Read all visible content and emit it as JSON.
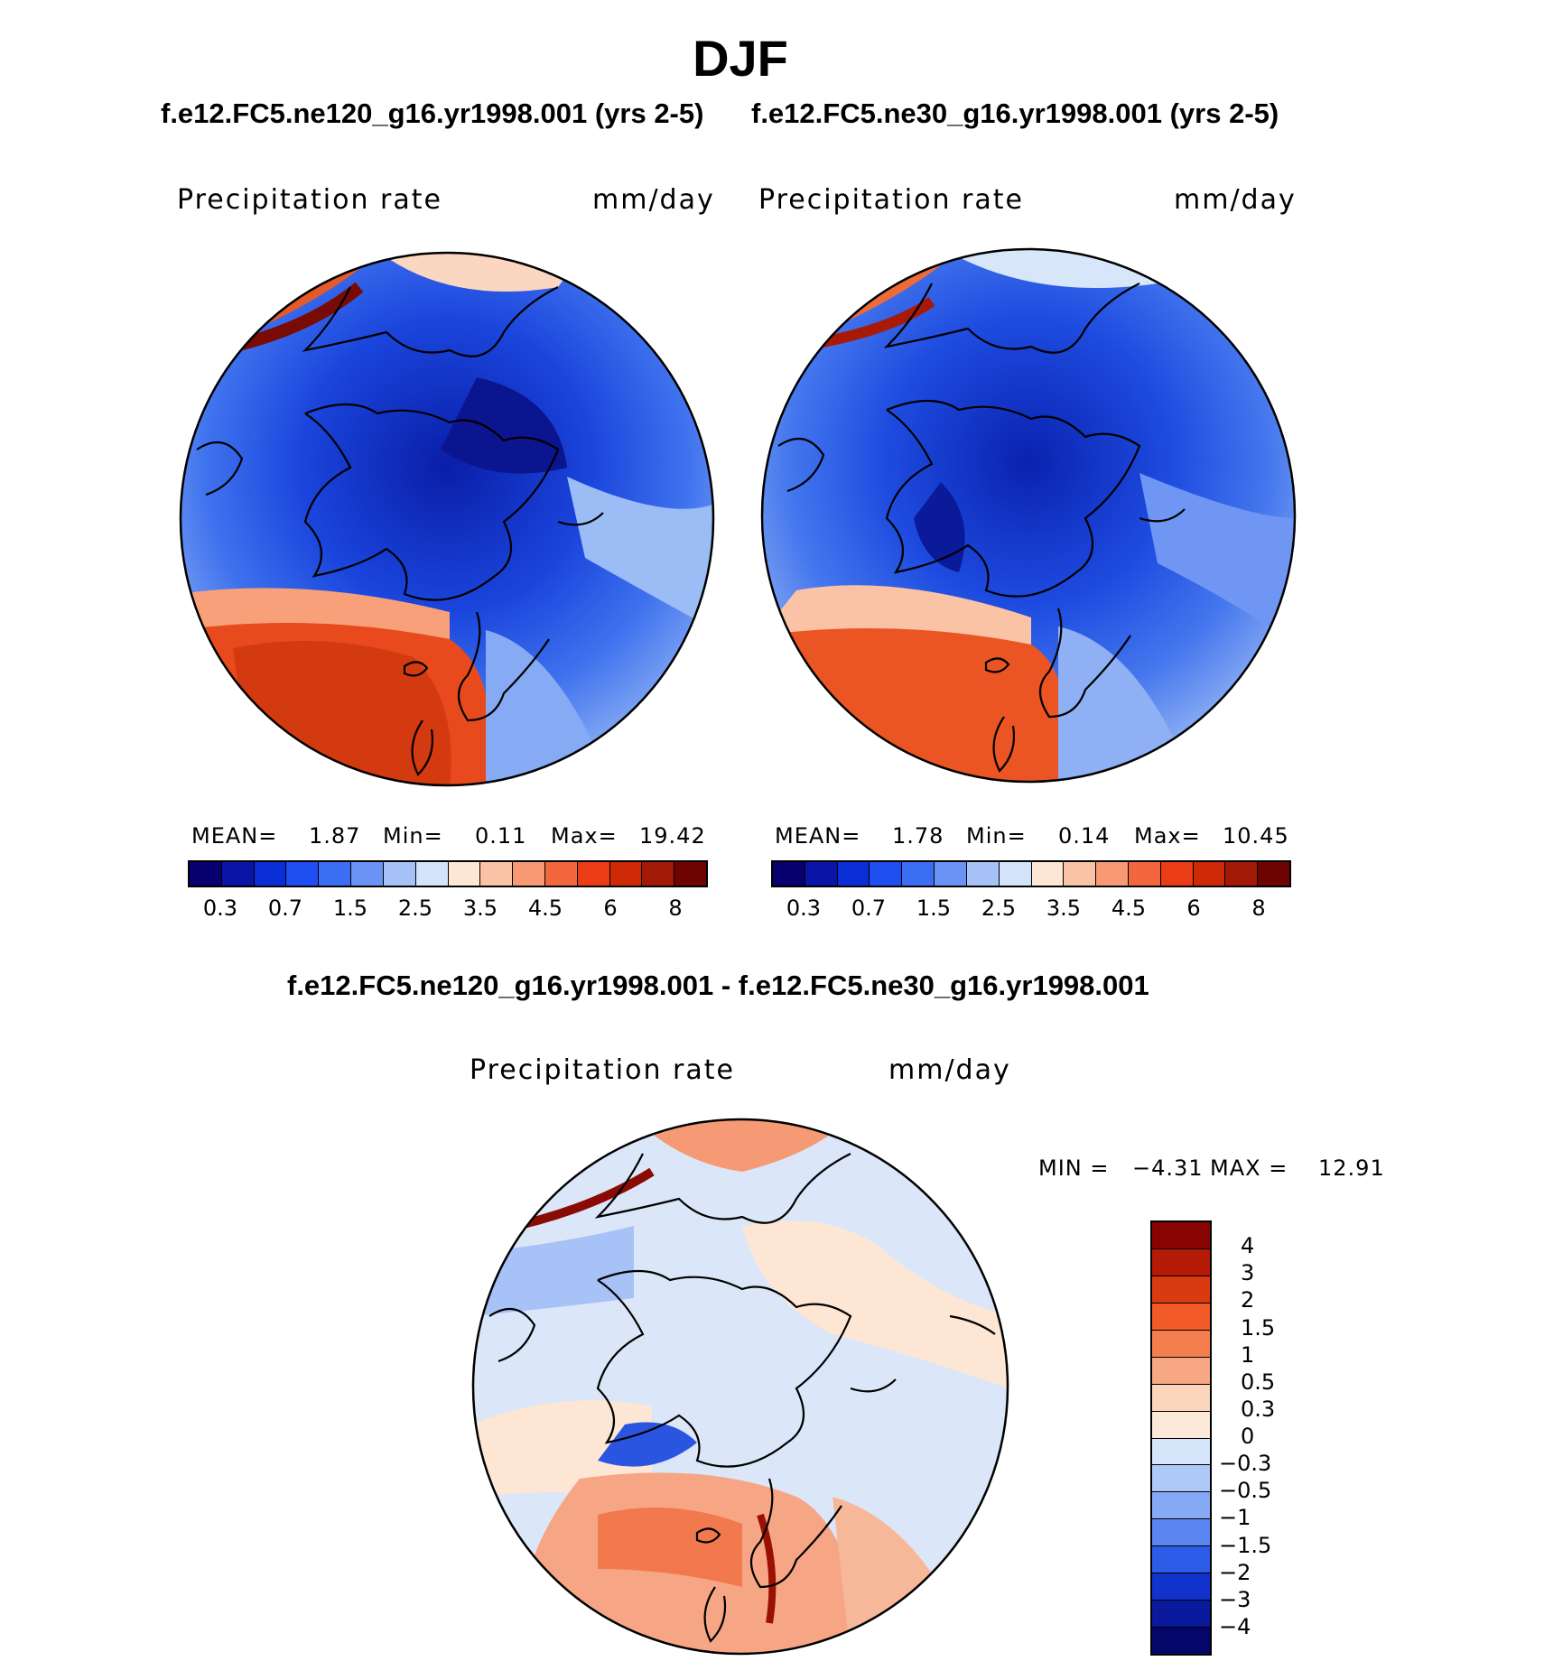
{
  "figure_title": "DJF",
  "panels": [
    {
      "case_title": "f.e12.FC5.ne120_g16.yr1998.001 (yrs 2-5)",
      "variable": "Precipitation rate",
      "units": "mm/day",
      "stats": {
        "mean_label": "MEAN=",
        "mean": "1.87",
        "min_label": "Min=",
        "min": "0.11",
        "max_label": "Max=",
        "max": "19.42"
      }
    },
    {
      "case_title": "f.e12.FC5.ne30_g16.yr1998.001 (yrs 2-5)",
      "variable": "Precipitation rate",
      "units": "mm/day",
      "stats": {
        "mean_label": "MEAN=",
        "mean": "1.78",
        "min_label": "Min=",
        "min": "0.14",
        "max_label": "Max=",
        "max": "10.45"
      }
    }
  ],
  "abs_colorbar": {
    "ticks": [
      "0.3",
      "0.7",
      "1.5",
      "2.5",
      "3.5",
      "4.5",
      "6",
      "8"
    ],
    "colors": [
      "#08006e",
      "#0a14a6",
      "#0a2fd6",
      "#1f4ef0",
      "#3c6ef5",
      "#6b93f5",
      "#a7c2f7",
      "#d3e4fa",
      "#fde6d4",
      "#fbc3a5",
      "#f79a73",
      "#f2673e",
      "#ea3d15",
      "#cf2a08",
      "#a21a05",
      "#6e0402"
    ]
  },
  "diff_panel": {
    "title": "f.e12.FC5.ne120_g16.yr1998.001 - f.e12.FC5.ne30_g16.yr1998.001",
    "variable": "Precipitation rate",
    "units": "mm/day",
    "stats": {
      "min_label": "MIN =",
      "min": "−4.31",
      "max_label": "MAX =",
      "max": "12.91"
    },
    "colorbar": {
      "ticks": [
        "4",
        "3",
        "2",
        "1.5",
        "1",
        "0.5",
        "0.3",
        "0",
        "−0.3",
        "−0.5",
        "−1",
        "−1.5",
        "−2",
        "−3",
        "−4"
      ],
      "colors": [
        "#880404",
        "#b51a06",
        "#d93a10",
        "#f25a28",
        "#f57e4e",
        "#f7a782",
        "#fbd6bd",
        "#fde9da",
        "#d5e5fa",
        "#aec8f7",
        "#86a9f5",
        "#5b86f2",
        "#2d5ce8",
        "#1133cc",
        "#0a1a9c",
        "#06066a"
      ]
    }
  },
  "map_colors": {
    "coast": "#000000",
    "abs_low": "#0a25b8",
    "abs_mid": "#3d6ef2",
    "abs_high": "#e84a1e",
    "diff_neutral": "#dbe7f8",
    "diff_pos": "#f7a07a",
    "diff_neg": "#6e94f0"
  }
}
